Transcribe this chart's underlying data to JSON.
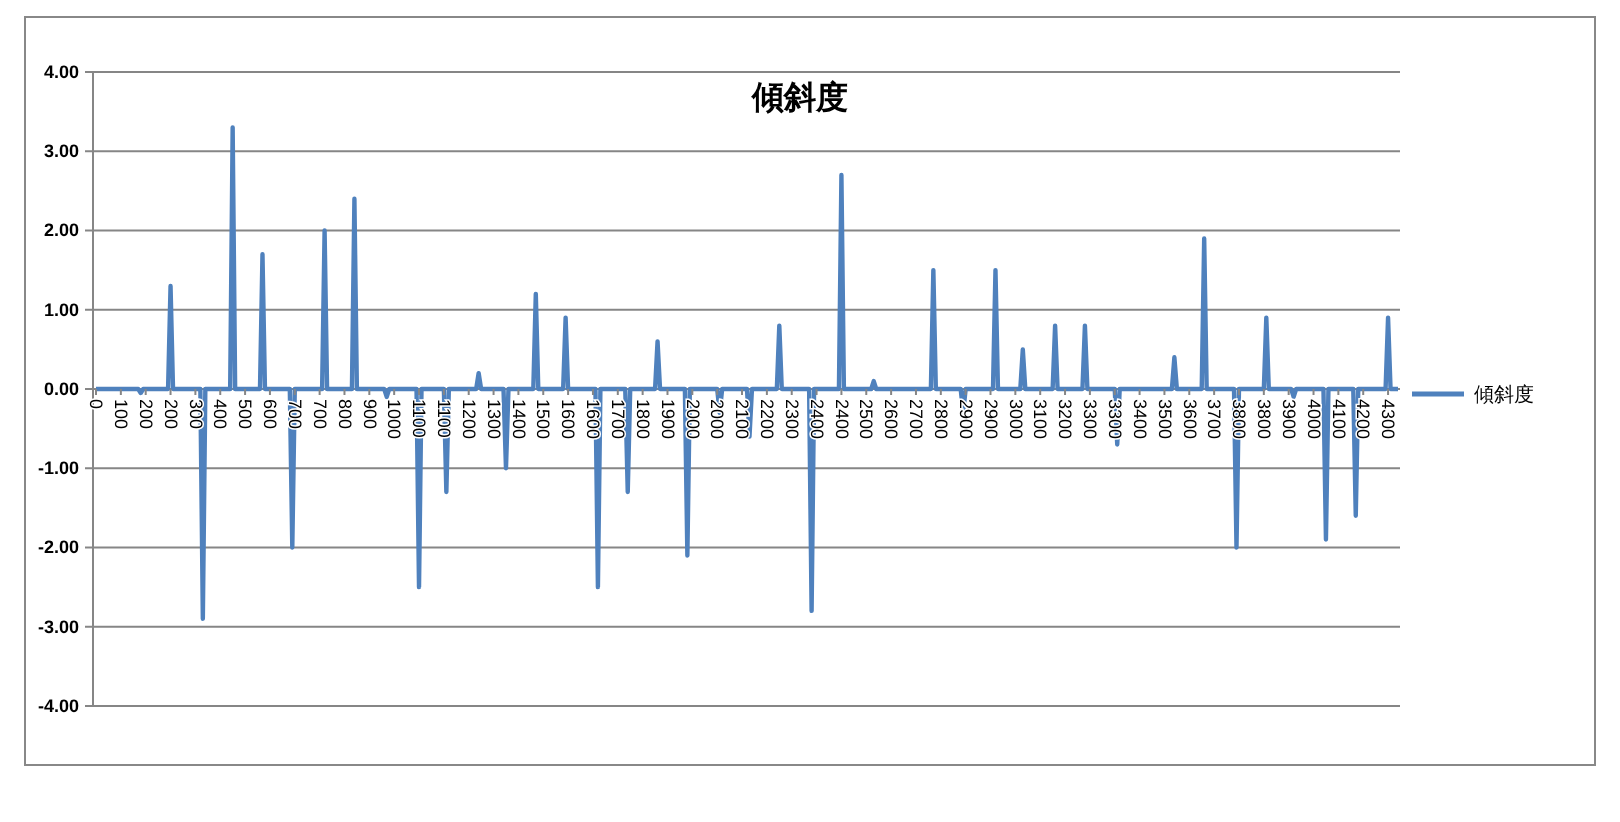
{
  "chart_data": {
    "type": "line",
    "title": "傾斜度",
    "categories": [
      "0",
      null,
      null,
      null,
      null,
      null,
      null,
      null,
      null,
      null,
      "100",
      null,
      null,
      null,
      null,
      null,
      null,
      null,
      null,
      null,
      "200",
      null,
      null,
      null,
      null,
      null,
      null,
      null,
      null,
      null,
      "200",
      null,
      null,
      null,
      null,
      null,
      null,
      null,
      null,
      null,
      "300",
      null,
      null,
      null,
      null,
      null,
      null,
      null,
      null,
      null,
      "400",
      null,
      null,
      null,
      null,
      null,
      null,
      null,
      null,
      null,
      "500",
      null,
      null,
      null,
      null,
      null,
      null,
      null,
      null,
      null,
      "600",
      null,
      null,
      null,
      null,
      null,
      null,
      null,
      null,
      null,
      "700",
      null,
      null,
      null,
      null,
      null,
      null,
      null,
      null,
      null,
      "700",
      null,
      null,
      null,
      null,
      null,
      null,
      null,
      null,
      null,
      "800",
      null,
      null,
      null,
      null,
      null,
      null,
      null,
      null,
      null,
      "900",
      null,
      null,
      null,
      null,
      null,
      null,
      null,
      null,
      null,
      "1000",
      null,
      null,
      null,
      null,
      null,
      null,
      null,
      null,
      null,
      "1100",
      null,
      null,
      null,
      null,
      null,
      null,
      null,
      null,
      null,
      "1100",
      null,
      null,
      null,
      null,
      null,
      null,
      null,
      null,
      null,
      "1200",
      null,
      null,
      null,
      null,
      null,
      null,
      null,
      null,
      null,
      "1300",
      null,
      null,
      null,
      null,
      null,
      null,
      null,
      null,
      null,
      "1400",
      null,
      null,
      null,
      null,
      null,
      null,
      null,
      null,
      null,
      "1500",
      null,
      null,
      null,
      null,
      null,
      null,
      null,
      null,
      null,
      "1600",
      null,
      null,
      null,
      null,
      null,
      null,
      null,
      null,
      null,
      "1600",
      null,
      null,
      null,
      null,
      null,
      null,
      null,
      null,
      null,
      "1700",
      null,
      null,
      null,
      null,
      null,
      null,
      null,
      null,
      null,
      "1800",
      null,
      null,
      null,
      null,
      null,
      null,
      null,
      null,
      null,
      "1900",
      null,
      null,
      null,
      null,
      null,
      null,
      null,
      null,
      null,
      "2000",
      null,
      null,
      null,
      null,
      null,
      null,
      null,
      null,
      null,
      "2000",
      null,
      null,
      null,
      null,
      null,
      null,
      null,
      null,
      null,
      "2100",
      null,
      null,
      null,
      null,
      null,
      null,
      null,
      null,
      null,
      "2200",
      null,
      null,
      null,
      null,
      null,
      null,
      null,
      null,
      null,
      "2300",
      null,
      null,
      null,
      null,
      null,
      null,
      null,
      null,
      null,
      "2400",
      null,
      null,
      null,
      null,
      null,
      null,
      null,
      null,
      null,
      "2400",
      null,
      null,
      null,
      null,
      null,
      null,
      null,
      null,
      null,
      "2500",
      null,
      null,
      null,
      null,
      null,
      null,
      null,
      null,
      null,
      "2600",
      null,
      null,
      null,
      null,
      null,
      null,
      null,
      null,
      null,
      "2700",
      null,
      null,
      null,
      null,
      null,
      null,
      null,
      null,
      null,
      "2800",
      null,
      null,
      null,
      null,
      null,
      null,
      null,
      null,
      null,
      "2900",
      null,
      null,
      null,
      null,
      null,
      null,
      null,
      null,
      null,
      "2900",
      null,
      null,
      null,
      null,
      null,
      null,
      null,
      null,
      null,
      "3000",
      null,
      null,
      null,
      null,
      null,
      null,
      null,
      null,
      null,
      "3100",
      null,
      null,
      null,
      null,
      null,
      null,
      null,
      null,
      null,
      "3200",
      null,
      null,
      null,
      null,
      null,
      null,
      null,
      null,
      null,
      "3300",
      null,
      null,
      null,
      null,
      null,
      null,
      null,
      null,
      null,
      "3300",
      null,
      null,
      null,
      null,
      null,
      null,
      null,
      null,
      null,
      "3400",
      null,
      null,
      null,
      null,
      null,
      null,
      null,
      null,
      null,
      "3500",
      null,
      null,
      null,
      null,
      null,
      null,
      null,
      null,
      null,
      "3600",
      null,
      null,
      null,
      null,
      null,
      null,
      null,
      null,
      null,
      "3700",
      null,
      null,
      null,
      null,
      null,
      null,
      null,
      null,
      null,
      "3800",
      null,
      null,
      null,
      null,
      null,
      null,
      null,
      null,
      null,
      "3800",
      null,
      null,
      null,
      null,
      null,
      null,
      null,
      null,
      null,
      "3900",
      null,
      null,
      null,
      null,
      null,
      null,
      null,
      null,
      null,
      "4000",
      null,
      null,
      null,
      null,
      null,
      null,
      null,
      null,
      null,
      "4100",
      null,
      null,
      null,
      null,
      null,
      null,
      null,
      null,
      null,
      "4200",
      null,
      null,
      null,
      null,
      null,
      null,
      null,
      null,
      null,
      "4300",
      null,
      null,
      null,
      null
    ],
    "series": [
      {
        "name": "傾斜度",
        "color": "#4f81bd",
        "values": [
          0,
          0,
          0,
          0,
          0,
          0,
          0,
          0,
          0,
          0,
          0,
          0,
          0,
          0,
          0,
          0,
          0,
          0,
          -0.05,
          0,
          0,
          0,
          0,
          0,
          0,
          0,
          0,
          0,
          0,
          0,
          1.3,
          0,
          0,
          0,
          0,
          0,
          0,
          0,
          0,
          0,
          0,
          0,
          0,
          -2.9,
          0,
          0,
          0,
          0,
          0,
          0,
          0,
          0,
          0,
          0,
          0,
          3.3,
          0,
          0,
          0,
          0,
          0,
          0,
          0,
          0,
          0,
          0,
          0,
          1.7,
          0,
          0,
          0,
          0,
          0,
          0,
          0,
          0,
          0,
          0,
          0,
          -2.0,
          0,
          0,
          0,
          0,
          0,
          0,
          0,
          0,
          0,
          0,
          0,
          0,
          2.0,
          0,
          0,
          0,
          0,
          0,
          0,
          0,
          0,
          0,
          0,
          0,
          2.4,
          0,
          0,
          0,
          0,
          0,
          0,
          0,
          0,
          0,
          0,
          0,
          0,
          -0.1,
          0,
          0,
          0,
          0,
          0,
          0,
          0,
          0,
          0,
          0,
          0,
          0,
          -2.5,
          0,
          0,
          0,
          0,
          0,
          0,
          0,
          0,
          0,
          0,
          -1.3,
          0,
          0,
          0,
          0,
          0,
          0,
          0,
          0,
          0,
          0,
          0,
          0,
          0.2,
          0,
          0,
          0,
          0,
          0,
          0,
          0,
          0,
          0,
          0,
          -1.0,
          0,
          0,
          0,
          0,
          0,
          0,
          0,
          0,
          0,
          0,
          0,
          1.2,
          0,
          0,
          0,
          0,
          0,
          0,
          0,
          0,
          0,
          0,
          0,
          0.9,
          0,
          0,
          0,
          0,
          0,
          0,
          0,
          0,
          0,
          0,
          0,
          0,
          -2.5,
          0,
          0,
          0,
          0,
          0,
          0,
          0,
          0,
          0,
          0,
          0,
          -1.3,
          0,
          0,
          0,
          0,
          0,
          0,
          0,
          0,
          0,
          0,
          0,
          0.6,
          0,
          0,
          0,
          0,
          0,
          0,
          0,
          0,
          0,
          0,
          0,
          -2.1,
          0,
          0,
          0,
          0,
          0,
          0,
          0,
          0,
          0,
          0,
          0,
          0,
          -0.3,
          0,
          0,
          0,
          0,
          0,
          0,
          0,
          0,
          0,
          0,
          0,
          -0.6,
          0,
          0,
          0,
          0,
          0,
          0,
          0,
          0,
          0,
          0,
          0,
          0.8,
          0,
          0,
          0,
          0,
          0,
          0,
          0,
          0,
          0,
          0,
          0,
          0,
          -2.8,
          0,
          0,
          0,
          0,
          0,
          0,
          0,
          0,
          0,
          0,
          0,
          2.7,
          0,
          0,
          0,
          0,
          0,
          0,
          0,
          0,
          0,
          0,
          0,
          0,
          0.1,
          0,
          0,
          0,
          0,
          0,
          0,
          0,
          0,
          0,
          0,
          0,
          0,
          0,
          0,
          0,
          0,
          0,
          0,
          0,
          0,
          0,
          0,
          0,
          1.5,
          0,
          0,
          0,
          0,
          0,
          0,
          0,
          0,
          0,
          0,
          0,
          -0.3,
          0,
          0,
          0,
          0,
          0,
          0,
          0,
          0,
          0,
          0,
          0,
          0,
          1.5,
          0,
          0,
          0,
          0,
          0,
          0,
          0,
          0,
          0,
          0,
          0.5,
          0,
          0,
          0,
          0,
          0,
          0,
          0,
          0,
          0,
          0,
          0,
          0,
          0.8,
          0,
          0,
          0,
          0,
          0,
          0,
          0,
          0,
          0,
          0,
          0,
          0.8,
          0,
          0,
          0,
          0,
          0,
          0,
          0,
          0,
          0,
          0,
          0,
          0,
          -0.7,
          0,
          0,
          0,
          0,
          0,
          0,
          0,
          0,
          0,
          0,
          0,
          0,
          0,
          0,
          0,
          0,
          0,
          0,
          0,
          0,
          0,
          0,
          0.4,
          0,
          0,
          0,
          0,
          0,
          0,
          0,
          0,
          0,
          0,
          0,
          1.9,
          0,
          0,
          0,
          0,
          0,
          0,
          0,
          0,
          0,
          0,
          0,
          0,
          -2.0,
          0,
          0,
          0,
          0,
          0,
          0,
          0,
          0,
          0,
          0,
          0,
          0.9,
          0,
          0,
          0,
          0,
          0,
          0,
          0,
          0,
          0,
          0,
          -0.1,
          0,
          0,
          0,
          0,
          0,
          0,
          0,
          0,
          0,
          0,
          0,
          0,
          -1.9,
          0,
          0,
          0,
          0,
          0,
          0,
          0,
          0,
          0,
          0,
          0,
          -1.6,
          0,
          0,
          0,
          0,
          0,
          0,
          0,
          0,
          0,
          0,
          0,
          0,
          0.9,
          0,
          0,
          0,
          0
        ]
      }
    ],
    "ylim": [
      -4,
      4
    ],
    "yticks": [
      {
        "value": -4,
        "label": "-4.00"
      },
      {
        "value": -3,
        "label": "-3.00"
      },
      {
        "value": -2,
        "label": "-2.00"
      },
      {
        "value": -1,
        "label": "-1.00"
      },
      {
        "value": 0,
        "label": "0.00"
      },
      {
        "value": 1,
        "label": "1.00"
      },
      {
        "value": 2,
        "label": "2.00"
      },
      {
        "value": 3,
        "label": "3.00"
      },
      {
        "value": 4,
        "label": "4.00"
      }
    ],
    "grid": "y",
    "legend": "right",
    "line_style": "solid",
    "marker": "none"
  }
}
